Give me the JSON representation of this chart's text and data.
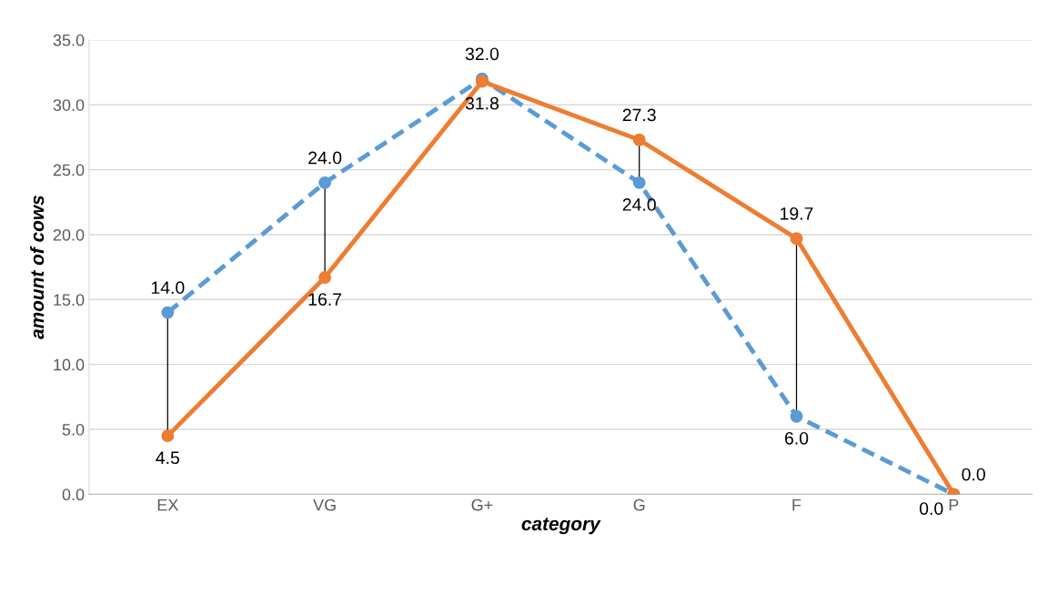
{
  "chart_data": {
    "type": "line",
    "xlabel": "category",
    "ylabel": "amount of cows",
    "categories": [
      "EX",
      "VG",
      "G+",
      "G",
      "F",
      "P"
    ],
    "series": [
      {
        "color": "#5b9bd5",
        "line_style": "dashed",
        "values": [
          14.0,
          24.0,
          32.0,
          24.0,
          6.0,
          0.0
        ],
        "value_labels": [
          "14.0",
          "24.0",
          "32.0",
          "24.0",
          "6.0",
          "0.0"
        ]
      },
      {
        "color": "#ed7d31",
        "line_style": "solid",
        "values": [
          4.5,
          16.7,
          31.8,
          27.3,
          19.7,
          0.0
        ],
        "value_labels": [
          "4.5",
          "16.7",
          "31.8",
          "27.3",
          "19.7",
          "0.0"
        ]
      }
    ],
    "ylim": [
      0,
      35
    ],
    "yticks": [
      {
        "value": 0,
        "label": "0.0"
      },
      {
        "value": 5,
        "label": "5.0"
      },
      {
        "value": 10,
        "label": "10.0"
      },
      {
        "value": 15,
        "label": "15.0"
      },
      {
        "value": 20,
        "label": "20.0"
      },
      {
        "value": 25,
        "label": "25.0"
      },
      {
        "value": 30,
        "label": "30.0"
      },
      {
        "value": 35,
        "label": "35.0"
      }
    ],
    "grid": "y",
    "marker": "circle"
  }
}
